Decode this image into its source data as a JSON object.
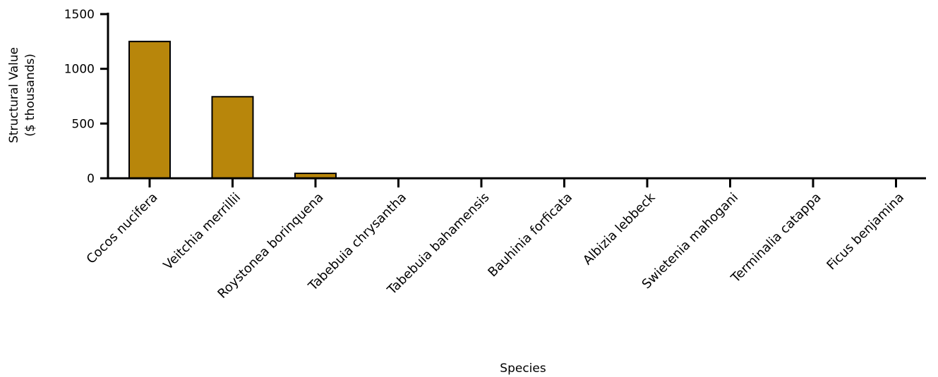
{
  "chart_data": {
    "type": "bar",
    "title": "",
    "xlabel": "Species",
    "ylabel_lines": [
      "Structural Value",
      "($ thousands)"
    ],
    "ylim": [
      0,
      1500
    ],
    "yticks": [
      0,
      500,
      1000,
      1500
    ],
    "categories": [
      "Cocos nucifera",
      "Veitchia merrillii",
      "Roystonea borinquena",
      "Tabebuia chrysantha",
      "Tabebuia bahamensis",
      "Bauhinia forficata",
      "Albizia lebbeck",
      "Swietenia mahogani",
      "Terminalia catappa",
      "Ficus benjamina"
    ],
    "values": [
      1250,
      745,
      45,
      0,
      0,
      0,
      0,
      0,
      0,
      0
    ],
    "bar_color": "#B8860B",
    "grid": false,
    "legend": "none"
  }
}
